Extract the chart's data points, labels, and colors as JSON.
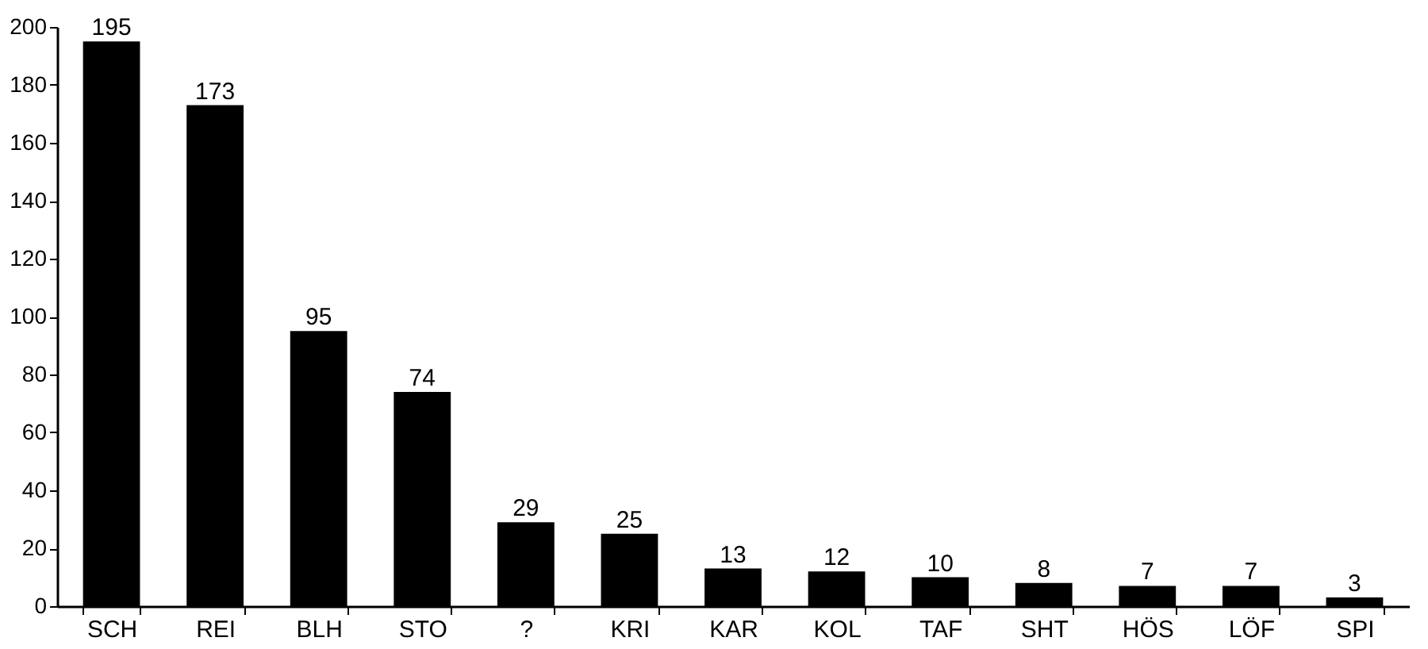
{
  "chart_data": {
    "type": "bar",
    "categories": [
      "SCH",
      "REI",
      "BLH",
      "STO",
      "?",
      "KRI",
      "KAR",
      "KOL",
      "TAF",
      "SHT",
      "HÖS",
      "LÖF",
      "SPI"
    ],
    "values": [
      195,
      173,
      95,
      74,
      29,
      25,
      13,
      12,
      10,
      8,
      7,
      7,
      3
    ],
    "color": "#000000",
    "ylim": [
      0,
      200
    ],
    "yticks": [
      0,
      20,
      40,
      60,
      80,
      100,
      120,
      140,
      160,
      180,
      200
    ],
    "data_labels": true
  }
}
